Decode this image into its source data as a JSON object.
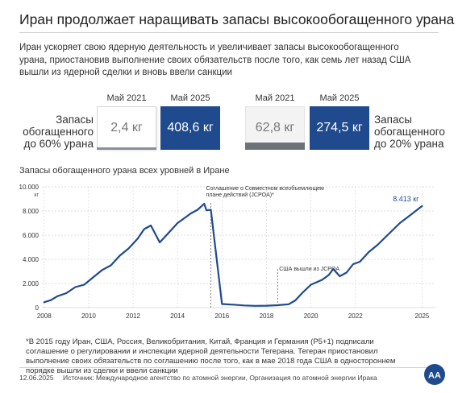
{
  "header": {
    "title": "Иран продолжает наращивать запасы высокообогащенного урана",
    "subtitle": "Иран ускоряет свою ядерную деятельность и увеличивает запасы высокообогащенного урана, приостановив выполнение своих обязательств после того, как семь лет назад США вышли из ядерной сделки и вновь ввели санкции"
  },
  "kpis": {
    "left_label": "Запасы обогащенного до 60% урана",
    "right_label": "Запасы обогащенного до 20% урана",
    "items": [
      {
        "year": "Май 2021",
        "value": "2,4 кг"
      },
      {
        "year": "Май 2025",
        "value": "408,6 кг"
      },
      {
        "year": "Май 2021",
        "value": "62,8 кг"
      },
      {
        "year": "Май 2025",
        "value": "274,5 кг"
      }
    ]
  },
  "chart_title": "Запасы обогащенного урана всех уровней в Иране",
  "chart_data": {
    "type": "line",
    "title": "Запасы обогащенного урана всех уровней в Иране",
    "xlabel": "",
    "ylabel": "кг",
    "xlim": [
      2007.9,
      2025.6
    ],
    "ylim": [
      0,
      10000
    ],
    "x_ticks": [
      2008,
      2010,
      2012,
      2014,
      2016,
      2018,
      2020,
      2022,
      2025
    ],
    "y_ticks": [
      {
        "value": 0,
        "label": "0"
      },
      {
        "value": 2000,
        "label": "2.000"
      },
      {
        "value": 4000,
        "label": "4.000"
      },
      {
        "value": 6000,
        "label": "6.000"
      },
      {
        "value": 8000,
        "label": "8.000"
      },
      {
        "value": 10000,
        "label": "10.000"
      }
    ],
    "y_unit_label": "кг",
    "grid": true,
    "series": [
      {
        "name": "",
        "color": "#1f4a8e",
        "x": [
          2008.0,
          2008.3,
          2008.6,
          2009.0,
          2009.4,
          2009.8,
          2010.2,
          2010.6,
          2011.0,
          2011.4,
          2011.8,
          2012.2,
          2012.5,
          2012.8,
          2013.2,
          2013.6,
          2014.0,
          2014.3,
          2014.6,
          2014.9,
          2015.2,
          2015.3,
          2015.5,
          2016.0,
          2016.5,
          2017.0,
          2017.5,
          2018.0,
          2018.5,
          2019.0,
          2019.3,
          2019.6,
          2020.0,
          2020.5,
          2020.8,
          2021.0,
          2021.3,
          2021.6,
          2021.9,
          2022.2,
          2022.6,
          2023.0,
          2023.5,
          2024.0,
          2024.5,
          2025.0
        ],
        "y": [
          450,
          620,
          950,
          1200,
          1700,
          1900,
          2500,
          3100,
          3500,
          4300,
          4900,
          5700,
          6500,
          6800,
          5400,
          6200,
          7000,
          7400,
          7800,
          8100,
          8600,
          8050,
          8100,
          300,
          250,
          180,
          150,
          160,
          200,
          280,
          600,
          1200,
          1900,
          2300,
          2700,
          3200,
          2600,
          2900,
          3600,
          3800,
          4600,
          5200,
          6100,
          7000,
          7700,
          8413
        ]
      }
    ],
    "annotations": [
      {
        "text": "Соглашение о Совместном всеобъемлющем плане действий (JCPOA)*",
        "x": 2015.5
      },
      {
        "text": "США вышли из JCPOA",
        "x": 2018.5
      },
      {
        "text": "8.413 кг",
        "x": 2025.0,
        "y": 8413
      }
    ]
  },
  "footnote": "*В 2015 году Иран, США, Россия, Великобритания, Китай, Франция и Германия (P5+1) подписали соглашение о регулировании и инспекции ядерной деятельности Тегерана. Тегеран приостановил выполнение своих обязательств по соглашению после того, как в мае 2018 года США в одностороннем порядке вышли из сделки и ввели санкции",
  "footer": {
    "date": "12.06.2025",
    "source": "Источник: Международное агентство по атомной энергии, Организация по атомной энергии Ирака"
  },
  "colors": {
    "accent": "#1f4a8e",
    "grid": "#cfd3d8",
    "text": "#222222"
  },
  "logo": {
    "icon": "aa-logo-icon",
    "text": "AA"
  }
}
